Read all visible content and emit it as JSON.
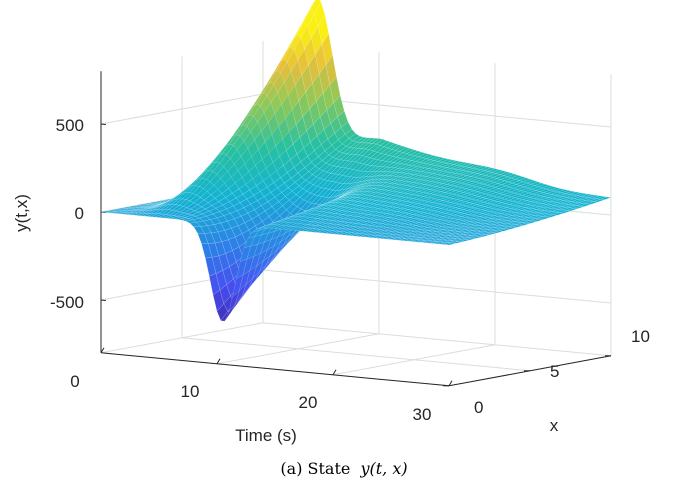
{
  "chart_data": {
    "type": "surface3d",
    "zlabel": "y(t,x)",
    "xlabel": "Time (s)",
    "ylabel": "x",
    "caption_prefix": "(a) State",
    "caption_math": "y(t, x)",
    "xlim": [
      0,
      30
    ],
    "ylim": [
      0,
      10
    ],
    "zlim": [
      -800,
      800
    ],
    "x_ticks": [
      "0",
      "10",
      "20",
      "30"
    ],
    "y_ticks": [
      "0",
      "5",
      "10"
    ],
    "z_ticks": [
      "-500",
      "0",
      "500"
    ],
    "x_tick_values": [
      0,
      10,
      20,
      30
    ],
    "y_tick_values": [
      0,
      5,
      10
    ],
    "z_tick_values": [
      -500,
      0,
      500
    ],
    "grid": true,
    "colormap": "parula",
    "peaks": [
      {
        "t": 4.6,
        "x": 10,
        "y": 900
      },
      {
        "t": 10.5,
        "x": 0,
        "y": -560
      },
      {
        "t": 9.8,
        "x": 10,
        "y": 270
      }
    ]
  }
}
